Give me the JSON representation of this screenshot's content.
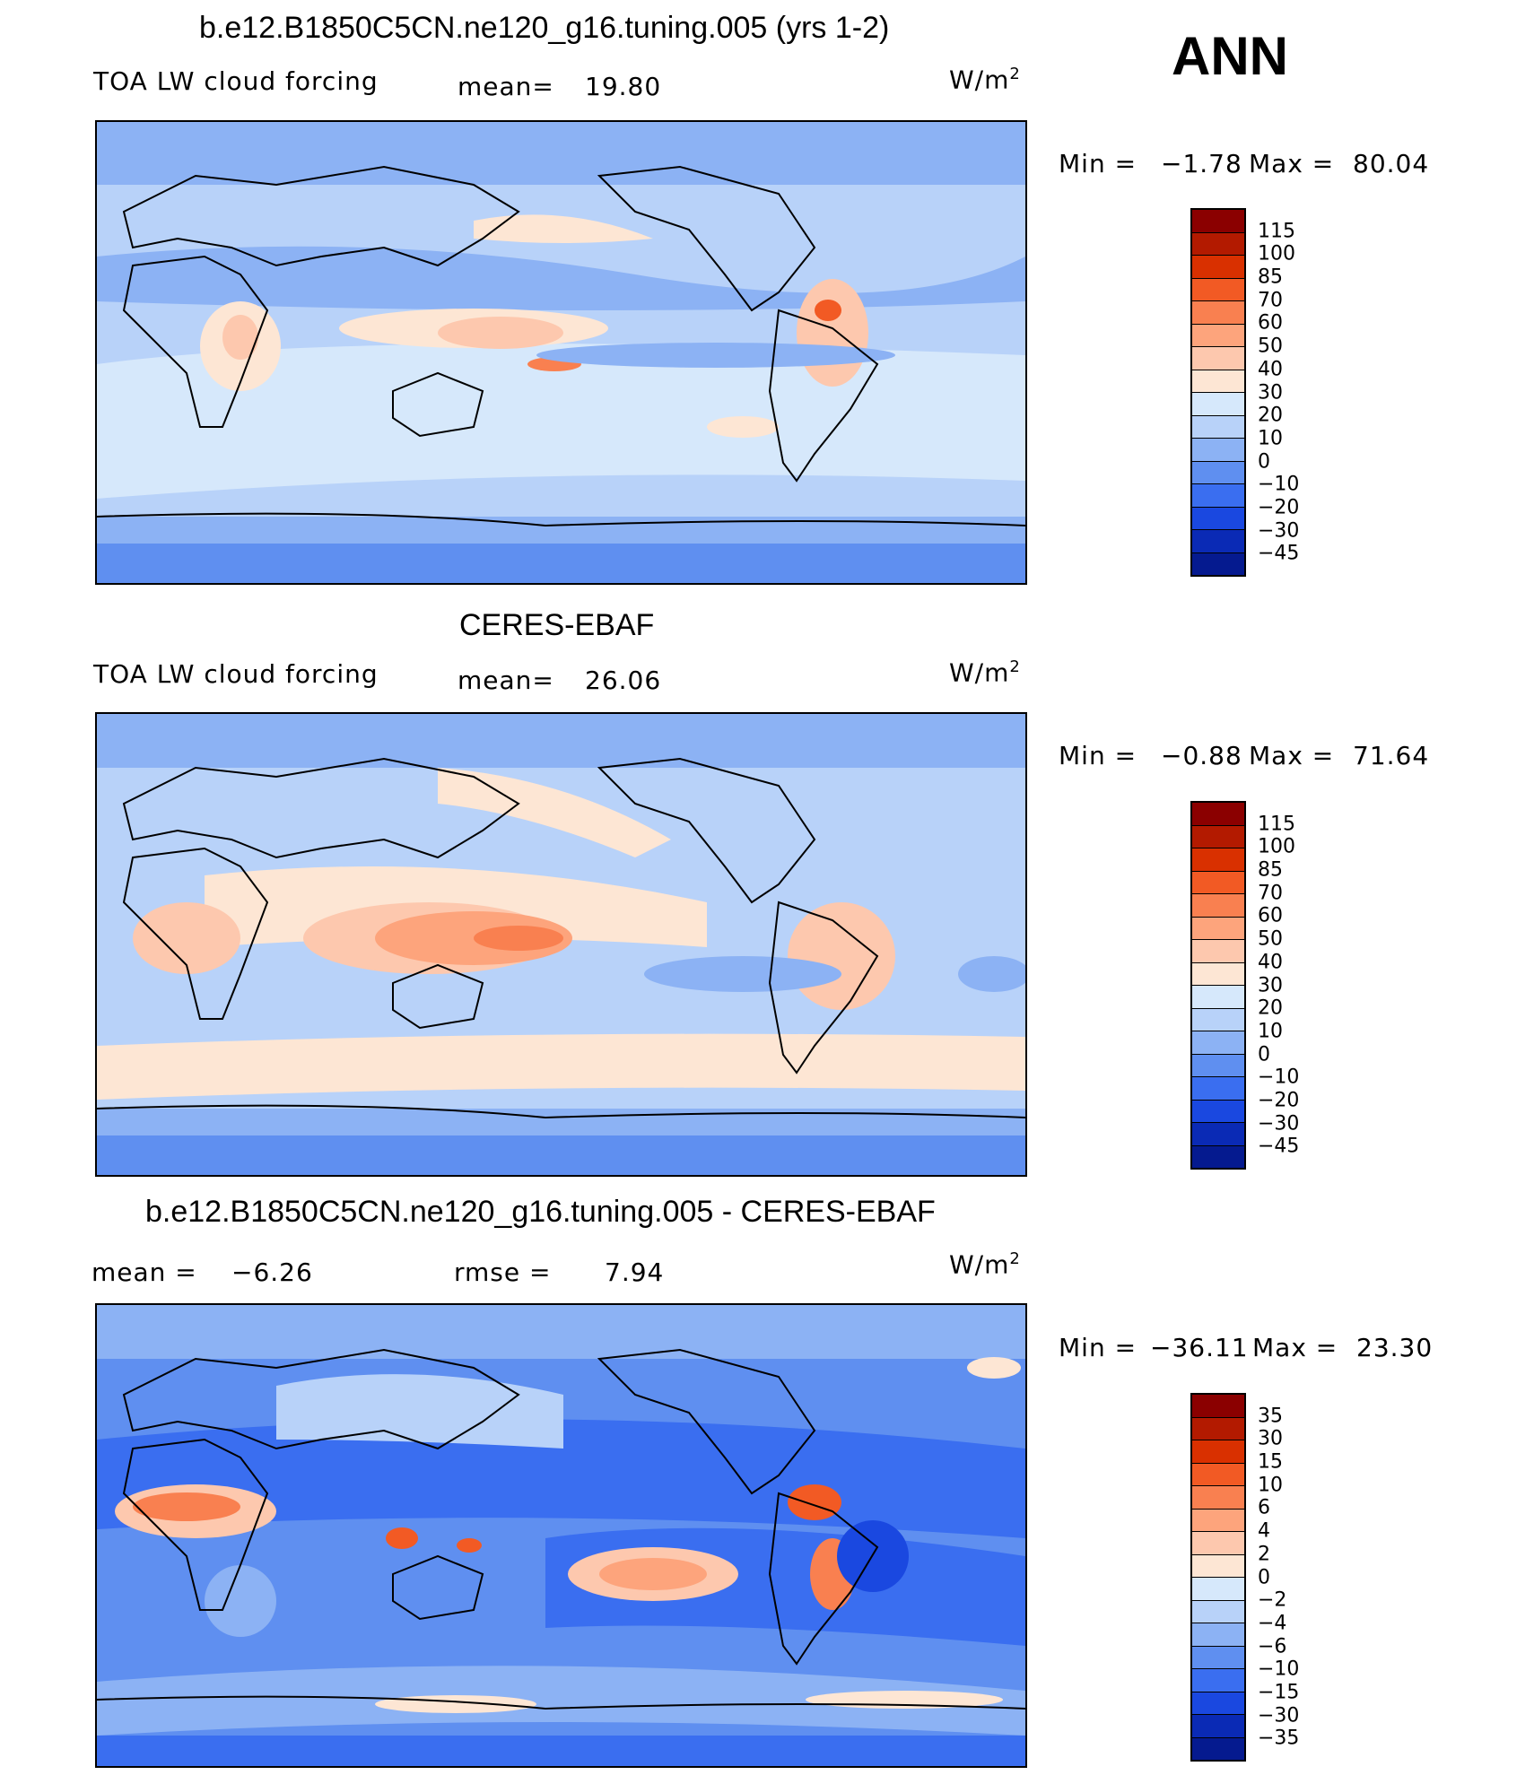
{
  "season": "ANN",
  "panels": [
    {
      "title": "b.e12.B1850C5CN.ne120_g16.tuning.005 (yrs 1-2)",
      "variable": "TOA LW cloud forcing",
      "stat1_label": "mean=",
      "stat1_value": "19.80",
      "stat2_label": "",
      "stat2_value": "",
      "units": "W/m",
      "units_exp": "2",
      "min_label": "Min =",
      "min_value": "−1.78",
      "max_label": "Max =",
      "max_value": "80.04",
      "levels": [
        "115",
        "100",
        "85",
        "70",
        "60",
        "50",
        "40",
        "30",
        "20",
        "10",
        "0",
        "−10",
        "−20",
        "−30",
        "−45"
      ],
      "colors": [
        "#8b0000",
        "#b31a00",
        "#d93000",
        "#f25a24",
        "#f98050",
        "#fda47c",
        "#fdc8ae",
        "#fde6d4",
        "#d6e8fb",
        "#b8d2f9",
        "#8cb2f4",
        "#5f8ff0",
        "#3a6ef0",
        "#1a48e0",
        "#0a2ab5",
        "#051a8f"
      ]
    },
    {
      "title": "CERES-EBAF",
      "variable": "TOA LW cloud forcing",
      "stat1_label": "mean=",
      "stat1_value": "26.06",
      "stat2_label": "",
      "stat2_value": "",
      "units": "W/m",
      "units_exp": "2",
      "min_label": "Min =",
      "min_value": "−0.88",
      "max_label": "Max =",
      "max_value": "71.64",
      "levels": [
        "115",
        "100",
        "85",
        "70",
        "60",
        "50",
        "40",
        "30",
        "20",
        "10",
        "0",
        "−10",
        "−20",
        "−30",
        "−45"
      ],
      "colors": [
        "#8b0000",
        "#b31a00",
        "#d93000",
        "#f25a24",
        "#f98050",
        "#fda47c",
        "#fdc8ae",
        "#fde6d4",
        "#d6e8fb",
        "#b8d2f9",
        "#8cb2f4",
        "#5f8ff0",
        "#3a6ef0",
        "#1a48e0",
        "#0a2ab5",
        "#051a8f"
      ]
    },
    {
      "title": "b.e12.B1850C5CN.ne120_g16.tuning.005 - CERES-EBAF",
      "variable": "",
      "stat1_label": "mean =",
      "stat1_value": "−6.26",
      "stat2_label": "rmse =",
      "stat2_value": "7.94",
      "units": "W/m",
      "units_exp": "2",
      "min_label": "Min =",
      "min_value": "−36.11",
      "max_label": "Max =",
      "max_value": "23.30",
      "levels": [
        "35",
        "30",
        "15",
        "10",
        "6",
        "4",
        "2",
        "0",
        "−2",
        "−4",
        "−6",
        "−10",
        "−15",
        "−30",
        "−35"
      ],
      "colors": [
        "#8b0000",
        "#b31a00",
        "#d93000",
        "#f25a24",
        "#f98050",
        "#fda47c",
        "#fdc8ae",
        "#fde6d4",
        "#d6e8fb",
        "#b8d2f9",
        "#8cb2f4",
        "#5f8ff0",
        "#3a6ef0",
        "#1a48e0",
        "#0a2ab5",
        "#051a8f"
      ]
    }
  ]
}
